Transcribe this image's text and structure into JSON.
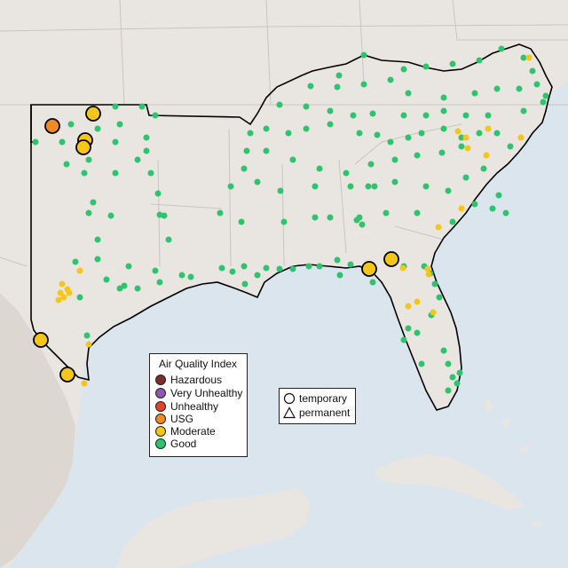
{
  "map": {
    "colors": {
      "water": "#dbe5ee",
      "land": "#e9e6e2",
      "land_shade": "#ddd7d1",
      "region_outline": "#000000",
      "state_lines": "#c9c4bf"
    },
    "monitors": {
      "good_color": "#2ec46e",
      "moderate_color": "#f5c518",
      "usg_color": "#f08a24",
      "large_border": "#000000"
    }
  },
  "aqi_legend": {
    "title": "Air Quality Index",
    "items": [
      {
        "label": "Hazardous",
        "color": "#7b2d2d"
      },
      {
        "label": "Very Unhealthy",
        "color": "#8e57b0"
      },
      {
        "label": "Unhealthy",
        "color": "#e0452a"
      },
      {
        "label": "USG",
        "color": "#ef8c28"
      },
      {
        "label": "Moderate",
        "color": "#f5c518"
      },
      {
        "label": "Good",
        "color": "#2ec46e"
      }
    ]
  },
  "shape_legend": {
    "items": [
      {
        "label": "temporary",
        "shape": "circle"
      },
      {
        "label": "permanent",
        "shape": "triangle"
      }
    ]
  }
}
